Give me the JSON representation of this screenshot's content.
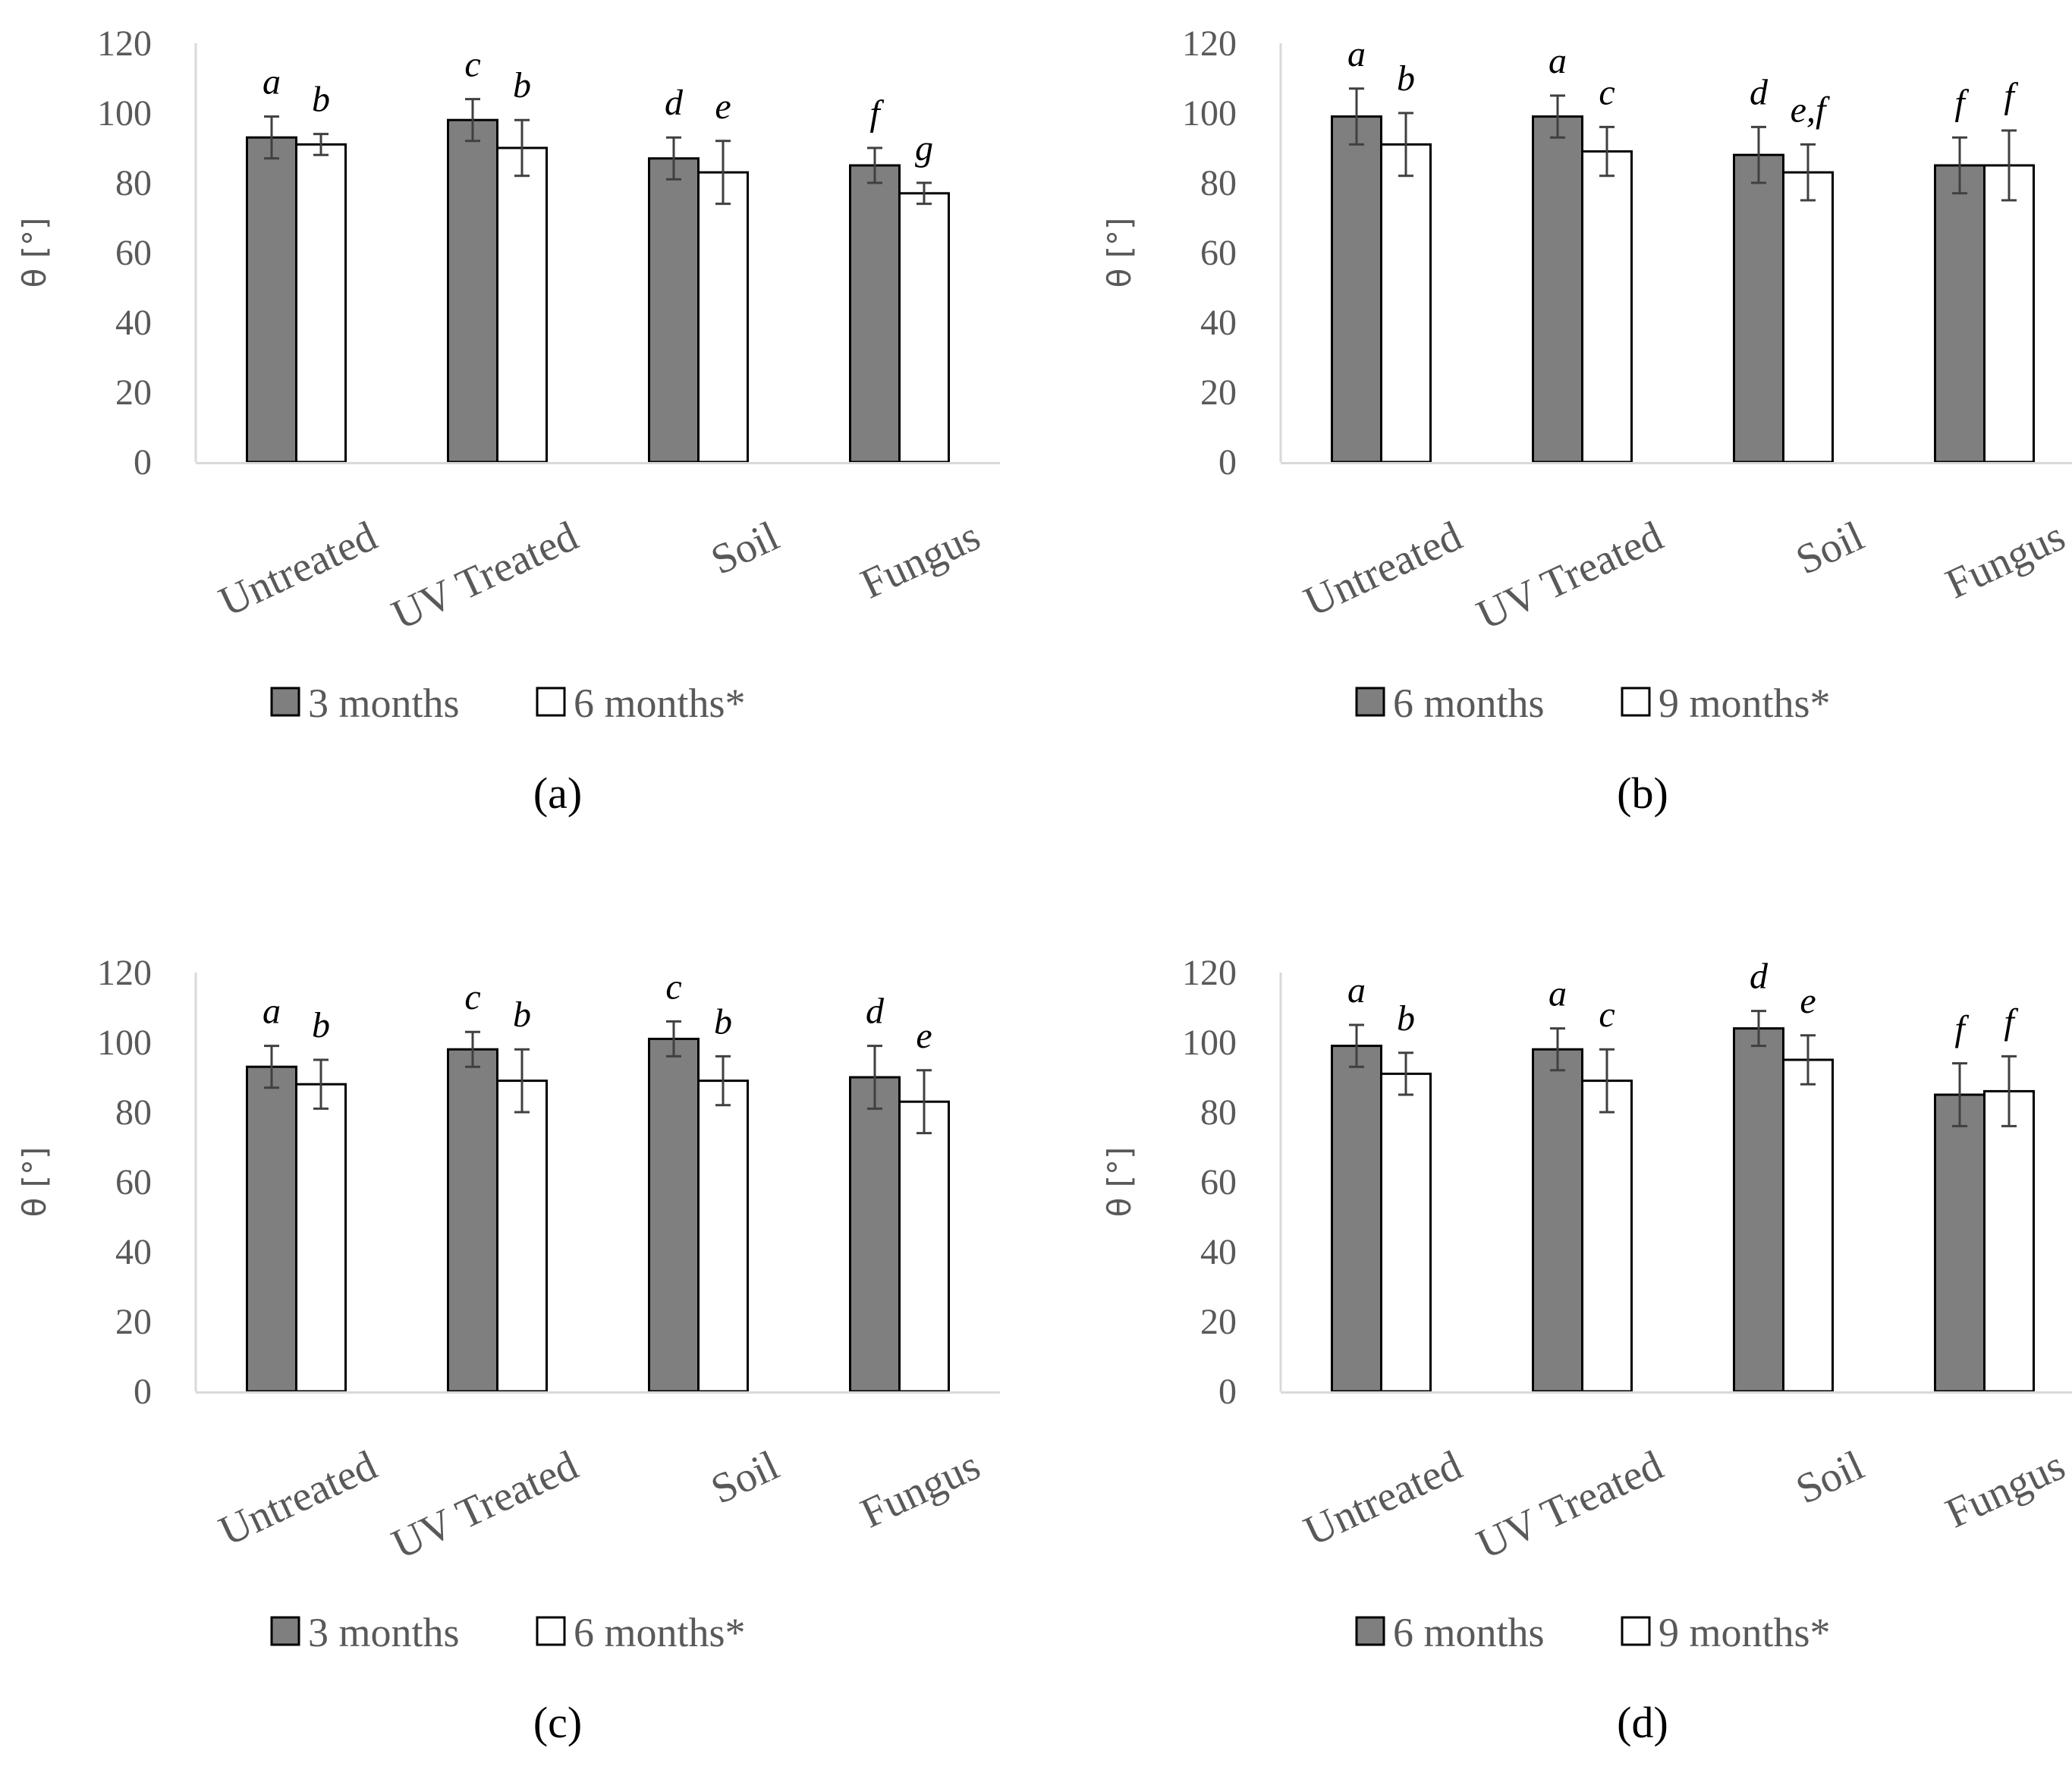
{
  "colors": {
    "dark_bar": "#7f7f7f",
    "light_bar": "#ffffff",
    "bar_stroke": "#000000",
    "axis": "#d9d9d9",
    "error_bar": "#404040"
  },
  "chart_data": [
    {
      "type": "bar",
      "label": "(a)",
      "categories": [
        "Untreated",
        "UV Treated",
        "Soil",
        "Fungus"
      ],
      "ylabel": "θ [°]",
      "ylim": [
        0,
        120
      ],
      "yticks": [
        0,
        20,
        40,
        60,
        80,
        100,
        120
      ],
      "series": [
        {
          "name": "3 months",
          "values": [
            93,
            98,
            87,
            85
          ],
          "errors": [
            6,
            6,
            6,
            5
          ],
          "letters": [
            "a",
            "c",
            "d",
            "f"
          ]
        },
        {
          "name": "6 months*",
          "values": [
            91,
            90,
            83,
            77
          ],
          "errors": [
            3,
            8,
            9,
            3
          ],
          "letters": [
            "b",
            "b",
            "e",
            "g"
          ]
        }
      ]
    },
    {
      "type": "bar",
      "label": "(b)",
      "categories": [
        "Untreated",
        "UV Treated",
        "Soil",
        "Fungus"
      ],
      "ylabel": "θ [°]",
      "ylim": [
        0,
        120
      ],
      "yticks": [
        0,
        20,
        40,
        60,
        80,
        100,
        120
      ],
      "series": [
        {
          "name": "6 months",
          "values": [
            99,
            99,
            88,
            85
          ],
          "errors": [
            8,
            6,
            8,
            8
          ],
          "letters": [
            "a",
            "a",
            "d",
            "f"
          ]
        },
        {
          "name": "9 months*",
          "values": [
            91,
            89,
            83,
            85
          ],
          "errors": [
            9,
            7,
            8,
            10
          ],
          "letters": [
            "b",
            "c",
            "e,f",
            "f"
          ]
        }
      ]
    },
    {
      "type": "bar",
      "label": "(c)",
      "categories": [
        "Untreated",
        "UV Treated",
        "Soil",
        "Fungus"
      ],
      "ylabel": "θ [°]",
      "ylim": [
        0,
        120
      ],
      "yticks": [
        0,
        20,
        40,
        60,
        80,
        100,
        120
      ],
      "series": [
        {
          "name": "3 months",
          "values": [
            93,
            98,
            101,
            90
          ],
          "errors": [
            6,
            5,
            5,
            9
          ],
          "letters": [
            "a",
            "c",
            "c",
            "d"
          ]
        },
        {
          "name": "6 months*",
          "values": [
            88,
            89,
            89,
            83
          ],
          "errors": [
            7,
            9,
            7,
            9
          ],
          "letters": [
            "b",
            "b",
            "b",
            "e"
          ]
        }
      ]
    },
    {
      "type": "bar",
      "label": "(d)",
      "categories": [
        "Untreated",
        "UV Treated",
        "Soil",
        "Fungus"
      ],
      "ylabel": "θ [°]",
      "ylim": [
        0,
        120
      ],
      "yticks": [
        0,
        20,
        40,
        60,
        80,
        100,
        120
      ],
      "series": [
        {
          "name": "6 months",
          "values": [
            99,
            98,
            104,
            85
          ],
          "errors": [
            6,
            6,
            5,
            9
          ],
          "letters": [
            "a",
            "a",
            "d",
            "f"
          ]
        },
        {
          "name": "9 months*",
          "values": [
            91,
            89,
            95,
            86
          ],
          "errors": [
            6,
            9,
            7,
            10
          ],
          "letters": [
            "b",
            "c",
            "e",
            "f"
          ]
        }
      ]
    }
  ]
}
